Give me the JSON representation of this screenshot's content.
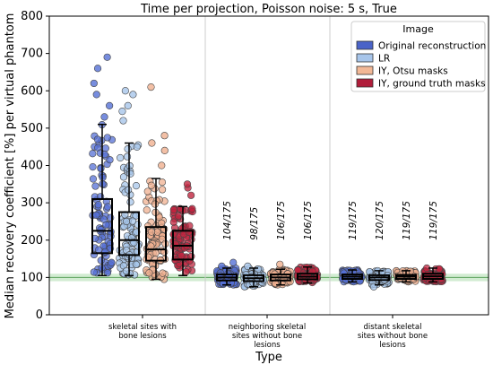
{
  "chart_data": {
    "type": "box+strip",
    "title": "Time per projection, Poisson noise:  5 s, True",
    "xlabel": "Type",
    "ylabel": "Median recovery coefficient [%] per virtual phantom",
    "ylim": [
      0,
      800
    ],
    "yticks": [
      0,
      100,
      200,
      300,
      400,
      500,
      600,
      700,
      800
    ],
    "reference_band": [
      90,
      110
    ],
    "reference_line": 100,
    "categories": [
      [
        "skeletal sites with",
        "bone lesions"
      ],
      [
        "neighboring skeletal",
        "sites without bone",
        "lesions"
      ],
      [
        "distant skeletal",
        "sites without bone",
        "lesions"
      ]
    ],
    "legend": {
      "title": "Image",
      "position": "top-right",
      "entries": [
        "Original reconstruction",
        "LR",
        "IY, Otsu masks",
        "IY, ground truth masks"
      ]
    },
    "series": [
      {
        "color": "#4a63c8",
        "point_color": "#5570d6",
        "boxes": [
          {
            "min": 105,
            "q1": 165,
            "median": 225,
            "q3": 310,
            "max": 510
          },
          {
            "min": 80,
            "q1": 92,
            "median": 100,
            "q3": 108,
            "max": 125
          },
          {
            "min": 88,
            "q1": 96,
            "median": 102,
            "q3": 108,
            "max": 120
          }
        ],
        "outliers": [
          [
            530,
            560,
            590,
            620,
            660,
            690
          ],
          [
            130,
            140
          ],
          []
        ]
      },
      {
        "color": "#a7c5ea",
        "point_color": "#a7c5ea",
        "boxes": [
          {
            "min": 105,
            "q1": 160,
            "median": 200,
            "q3": 275,
            "max": 460
          },
          {
            "min": 75,
            "q1": 90,
            "median": 98,
            "q3": 106,
            "max": 125
          },
          {
            "min": 80,
            "q1": 93,
            "median": 100,
            "q3": 106,
            "max": 118
          }
        ],
        "outliers": [
          [
            520,
            545,
            560,
            590,
            600
          ],
          [
            130
          ],
          [
            75
          ]
        ]
      },
      {
        "color": "#f2b896",
        "point_color": "#f0b090",
        "boxes": [
          {
            "min": 95,
            "q1": 145,
            "median": 175,
            "q3": 235,
            "max": 365
          },
          {
            "min": 80,
            "q1": 92,
            "median": 100,
            "q3": 108,
            "max": 122
          },
          {
            "min": 88,
            "q1": 96,
            "median": 102,
            "q3": 107,
            "max": 118
          }
        ],
        "outliers": [
          [
            400,
            440,
            460,
            480,
            610
          ],
          [
            135
          ],
          []
        ]
      },
      {
        "color": "#b01d3a",
        "point_color": "#c0243f",
        "boxes": [
          {
            "min": 105,
            "q1": 148,
            "median": 185,
            "q3": 225,
            "max": 290
          },
          {
            "min": 85,
            "q1": 95,
            "median": 102,
            "q3": 110,
            "max": 128
          },
          {
            "min": 88,
            "q1": 96,
            "median": 103,
            "q3": 110,
            "max": 125
          }
        ],
        "outliers": [
          [
            320,
            340,
            350
          ],
          [],
          []
        ]
      }
    ],
    "annotations": [
      {
        "category": 1,
        "series": 0,
        "text": "104/175"
      },
      {
        "category": 1,
        "series": 1,
        "text": "98/175"
      },
      {
        "category": 1,
        "series": 2,
        "text": "106/175"
      },
      {
        "category": 1,
        "series": 3,
        "text": "106/175"
      },
      {
        "category": 2,
        "series": 0,
        "text": "119/175"
      },
      {
        "category": 2,
        "series": 1,
        "text": "120/175"
      },
      {
        "category": 2,
        "series": 2,
        "text": "119/175"
      },
      {
        "category": 2,
        "series": 3,
        "text": "119/175"
      }
    ]
  }
}
